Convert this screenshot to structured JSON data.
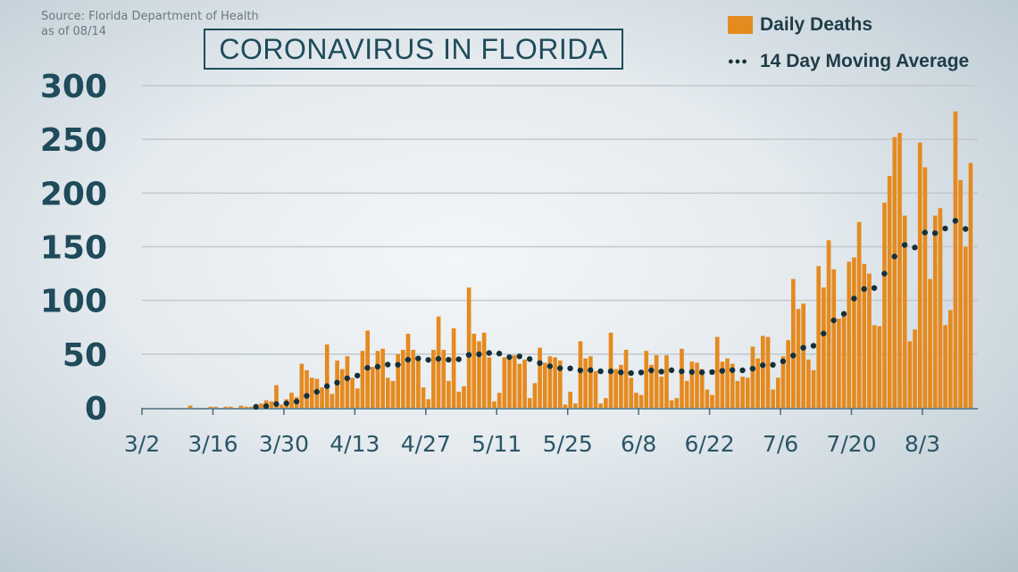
{
  "header": {
    "source_line1": "Source: Florida Department of Health",
    "source_line2": "as of 08/14",
    "title": "CORONAVIRUS IN FLORIDA"
  },
  "colors": {
    "bar": "#e58a1f",
    "dots": "#14313b",
    "text": "#1f4b5b"
  },
  "chart_data": {
    "type": "bar",
    "title": "CORONAVIRUS IN FLORIDA",
    "start_date": "3/2",
    "xlabel": "",
    "ylabel": "",
    "ylim": [
      0,
      300
    ],
    "yticks": [
      "0",
      "50",
      "100",
      "150",
      "200",
      "250",
      "300"
    ],
    "xticks": [
      {
        "label": "3/2",
        "day": 0
      },
      {
        "label": "3/16",
        "day": 14
      },
      {
        "label": "3/30",
        "day": 28
      },
      {
        "label": "4/13",
        "day": 42
      },
      {
        "label": "4/27",
        "day": 56
      },
      {
        "label": "5/11",
        "day": 70
      },
      {
        "label": "5/25",
        "day": 84
      },
      {
        "label": "6/8",
        "day": 98
      },
      {
        "label": "6/22",
        "day": 112
      },
      {
        "label": "7/6",
        "day": 126
      },
      {
        "label": "7/20",
        "day": 140
      },
      {
        "label": "8/3",
        "day": 154
      }
    ],
    "grid": true,
    "legend_position": "top-right",
    "series": [
      {
        "name": "Daily Deaths",
        "type": "bar",
        "values": [
          0,
          0,
          0,
          0,
          0,
          0,
          0,
          0,
          0,
          2,
          0,
          0,
          0,
          1,
          1,
          0,
          1,
          1,
          0,
          2,
          1,
          1,
          3,
          4,
          7,
          6,
          21,
          3,
          8,
          14,
          10,
          41,
          35,
          28,
          27,
          19,
          59,
          13,
          44,
          36,
          48,
          28,
          18,
          53,
          72,
          38,
          53,
          55,
          28,
          25,
          50,
          54,
          69,
          54,
          47,
          19,
          8,
          54,
          85,
          54,
          25,
          74,
          15,
          20,
          112,
          69,
          62,
          70,
          47,
          6,
          14,
          47,
          45,
          49,
          41,
          45,
          9,
          23,
          56,
          42,
          48,
          47,
          44,
          3,
          15,
          4,
          62,
          46,
          48,
          34,
          4,
          9,
          70,
          36,
          40,
          54,
          28,
          14,
          12,
          53,
          40,
          49,
          29,
          49,
          7,
          9,
          55,
          25,
          43,
          42,
          36,
          17,
          12,
          66,
          43,
          46,
          41,
          25,
          29,
          28,
          57,
          46,
          67,
          66,
          17,
          28,
          48,
          63,
          120,
          92,
          97,
          45,
          35,
          132,
          112,
          156,
          129,
          83,
          85,
          136,
          140,
          173,
          134,
          125,
          77,
          76,
          191,
          216,
          252,
          256,
          179,
          62,
          73,
          247,
          224,
          120,
          179,
          186,
          77,
          91,
          276,
          212,
          150,
          228
        ]
      },
      {
        "name": "14 Day Moving Average",
        "type": "dotted-line",
        "window": 14
      }
    ]
  }
}
